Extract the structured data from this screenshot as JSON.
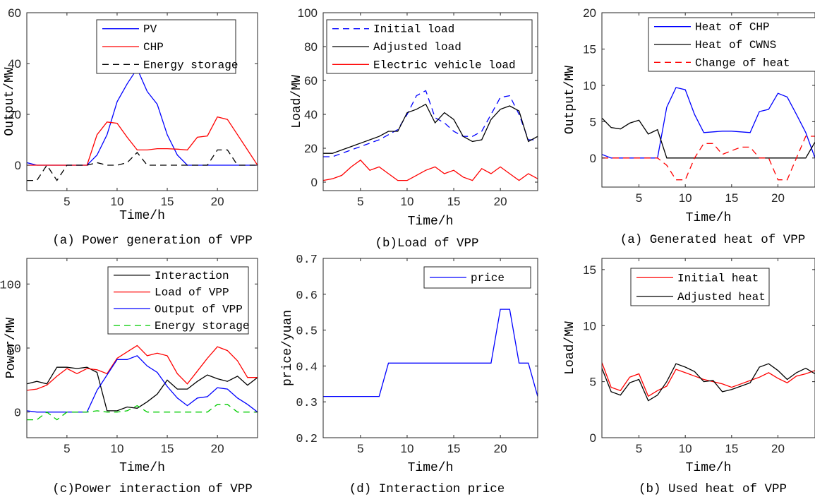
{
  "chart_data": [
    {
      "id": "a1",
      "type": "line",
      "caption": "(a) Power generation of VPP",
      "xlabel": "Time/h",
      "ylabel": "Output/MW",
      "xlim": [
        1,
        24
      ],
      "ylim": [
        -10,
        60
      ],
      "xticks": [
        5,
        10,
        15,
        20
      ],
      "yticks": [
        0,
        20,
        40,
        60
      ],
      "legend": "top-right",
      "series": [
        {
          "name": "PV",
          "color": "#0000ff",
          "dash": "solid",
          "x": [
            1,
            2,
            3,
            4,
            5,
            6,
            7,
            8,
            9,
            10,
            11,
            12,
            13,
            14,
            15,
            16,
            17,
            18,
            19,
            20,
            21,
            22,
            23,
            24
          ],
          "y": [
            1,
            0,
            0,
            0,
            0,
            0,
            0,
            4,
            12,
            25,
            32,
            38,
            29,
            24,
            12,
            4,
            0,
            0,
            0,
            0,
            0,
            0,
            0,
            0
          ]
        },
        {
          "name": "CHP",
          "color": "#ff0000",
          "dash": "solid",
          "x": [
            1,
            2,
            3,
            4,
            5,
            6,
            7,
            8,
            9,
            10,
            11,
            12,
            13,
            14,
            15,
            16,
            17,
            18,
            19,
            20,
            21,
            22,
            23,
            24
          ],
          "y": [
            0,
            0,
            0,
            0,
            0,
            0,
            0,
            12,
            17,
            16.5,
            11,
            6,
            6,
            6.5,
            6.5,
            6.3,
            6,
            11,
            11.5,
            19,
            18,
            12,
            6,
            0
          ]
        },
        {
          "name": "Energy storage",
          "color": "#000000",
          "dash": "dashed",
          "x": [
            1,
            2,
            3,
            4,
            5,
            6,
            7,
            8,
            9,
            10,
            11,
            12,
            13,
            14,
            15,
            16,
            17,
            18,
            19,
            20,
            21,
            22,
            23,
            24
          ],
          "y": [
            -6,
            -6,
            0,
            -6,
            0,
            0,
            0,
            1,
            0,
            0,
            1,
            5,
            0,
            0,
            0,
            0,
            0,
            0,
            0,
            6,
            6,
            0,
            0,
            0
          ]
        }
      ]
    },
    {
      "id": "b1",
      "type": "line",
      "caption": "(b)Load of VPP",
      "xlabel": "Time/h",
      "ylabel": "Load/MW",
      "xlim": [
        1,
        24
      ],
      "ylim": [
        -5,
        100
      ],
      "xticks": [
        5,
        10,
        15,
        20
      ],
      "yticks": [
        0,
        20,
        40,
        60,
        80,
        100
      ],
      "legend": "top",
      "series": [
        {
          "name": "Initial load",
          "color": "#0000ff",
          "dash": "dashed",
          "x": [
            1,
            2,
            3,
            4,
            5,
            6,
            7,
            8,
            9,
            10,
            11,
            12,
            13,
            14,
            15,
            16,
            17,
            18,
            19,
            20,
            21,
            22,
            23,
            24
          ],
          "y": [
            15,
            15,
            17,
            19,
            21,
            23,
            25,
            28,
            31,
            40,
            51,
            54,
            38,
            35,
            30,
            27,
            27,
            30,
            40,
            50,
            51,
            40,
            25,
            25
          ]
        },
        {
          "name": "Adjusted load",
          "color": "#000000",
          "dash": "solid",
          "x": [
            1,
            2,
            3,
            4,
            5,
            6,
            7,
            8,
            9,
            10,
            11,
            12,
            13,
            14,
            15,
            16,
            17,
            18,
            19,
            20,
            21,
            22,
            23,
            24
          ],
          "y": [
            17,
            17,
            19,
            21,
            23,
            25,
            27,
            30,
            30,
            41,
            43,
            46,
            35,
            41,
            37,
            27,
            24,
            25,
            37,
            43,
            45,
            42,
            24,
            27
          ]
        },
        {
          "name": "Electric vehicle load",
          "color": "#ff0000",
          "dash": "solid",
          "x": [
            1,
            2,
            3,
            4,
            5,
            6,
            7,
            8,
            9,
            10,
            11,
            12,
            13,
            14,
            15,
            16,
            17,
            18,
            19,
            20,
            21,
            22,
            23,
            24
          ],
          "y": [
            1,
            2,
            4,
            9,
            13,
            7,
            9,
            5,
            1,
            1,
            4,
            7,
            9,
            5,
            7,
            3,
            1,
            8,
            5,
            9,
            5,
            1,
            5,
            2
          ]
        }
      ]
    },
    {
      "id": "a2",
      "type": "line",
      "caption": "(a) Generated heat of VPP",
      "xlabel": "Time/h",
      "ylabel": "Output/MW",
      "xlim": [
        1,
        24
      ],
      "ylim": [
        -4,
        20
      ],
      "xticks": [
        5,
        10,
        15,
        20
      ],
      "yticks": [
        0,
        5,
        10,
        15,
        20
      ],
      "legend": "top-right",
      "series": [
        {
          "name": "Heat of CHP",
          "color": "#0000ff",
          "dash": "solid",
          "x": [
            1,
            2,
            3,
            4,
            5,
            6,
            7,
            8,
            9,
            10,
            11,
            12,
            13,
            14,
            15,
            16,
            17,
            18,
            19,
            20,
            21,
            22,
            23,
            24
          ],
          "y": [
            0.5,
            0,
            0,
            0,
            0,
            0,
            0,
            7,
            9.7,
            9.4,
            6,
            3.5,
            3.6,
            3.7,
            3.7,
            3.6,
            3.5,
            6.4,
            6.7,
            8.9,
            8.4,
            6,
            3.5,
            0
          ]
        },
        {
          "name": "Heat of CWNS",
          "color": "#000000",
          "dash": "solid",
          "x": [
            1,
            2,
            3,
            4,
            5,
            6,
            7,
            8,
            9,
            10,
            11,
            12,
            13,
            14,
            15,
            16,
            17,
            18,
            19,
            20,
            21,
            22,
            23,
            24
          ],
          "y": [
            5.5,
            4.2,
            4,
            4.8,
            5.2,
            3.3,
            3.9,
            0,
            0,
            0,
            0,
            0,
            0,
            0,
            0,
            0,
            0,
            0,
            0,
            0,
            0,
            0,
            0,
            2.2
          ]
        },
        {
          "name": "Change of heat",
          "color": "#ff0000",
          "dash": "dashed",
          "x": [
            1,
            2,
            3,
            4,
            5,
            6,
            7,
            8,
            9,
            10,
            11,
            12,
            13,
            14,
            15,
            16,
            17,
            18,
            19,
            20,
            21,
            22,
            23,
            24
          ],
          "y": [
            0,
            0,
            0,
            0,
            0,
            0,
            0,
            -1,
            -3,
            -3,
            0,
            2,
            2,
            0.5,
            1,
            1.5,
            1.5,
            0,
            0,
            -3,
            -3,
            0,
            3,
            3
          ]
        }
      ]
    },
    {
      "id": "c1",
      "type": "line",
      "caption": "(c)Power interaction of VPP",
      "xlabel": "Time/h",
      "ylabel": "Power/MW",
      "xlim": [
        1,
        24
      ],
      "ylim": [
        -20,
        120
      ],
      "xticks": [
        5,
        10,
        15,
        20
      ],
      "yticks": [
        0,
        50,
        100
      ],
      "legend": "top-right",
      "series": [
        {
          "name": "Interaction",
          "color": "#000000",
          "dash": "solid",
          "x": [
            1,
            2,
            3,
            4,
            5,
            6,
            7,
            8,
            9,
            10,
            11,
            12,
            13,
            14,
            15,
            16,
            17,
            18,
            19,
            20,
            21,
            22,
            23,
            24
          ],
          "y": [
            22,
            24,
            22,
            35,
            35,
            34,
            35,
            31,
            1,
            1,
            4,
            3,
            8,
            14,
            25,
            18,
            18,
            24,
            29,
            26,
            24,
            28,
            21,
            27
          ]
        },
        {
          "name": "Load of VPP",
          "color": "#ff0000",
          "dash": "solid",
          "x": [
            1,
            2,
            3,
            4,
            5,
            6,
            7,
            8,
            9,
            10,
            11,
            12,
            13,
            14,
            15,
            16,
            17,
            18,
            19,
            20,
            21,
            22,
            23,
            24
          ],
          "y": [
            17,
            18,
            21,
            28,
            34,
            30,
            34,
            33,
            30,
            42,
            47,
            52,
            44,
            46,
            44,
            30,
            22,
            32,
            42,
            51,
            48,
            40,
            27,
            27
          ]
        },
        {
          "name": "Output of VPP",
          "color": "#0000ff",
          "dash": "solid",
          "x": [
            1,
            2,
            3,
            4,
            5,
            6,
            7,
            8,
            9,
            10,
            11,
            12,
            13,
            14,
            15,
            16,
            17,
            18,
            19,
            20,
            21,
            22,
            23,
            24
          ],
          "y": [
            1,
            0,
            0,
            0,
            0,
            0,
            0,
            17,
            29,
            41,
            41,
            44,
            36,
            31,
            20,
            11,
            5,
            11,
            12,
            19,
            18,
            11,
            6,
            0
          ]
        },
        {
          "name": "Energy storage",
          "color": "#00cc00",
          "dash": "dashed",
          "x": [
            1,
            2,
            3,
            4,
            5,
            6,
            7,
            8,
            9,
            10,
            11,
            12,
            13,
            14,
            15,
            16,
            17,
            18,
            19,
            20,
            21,
            22,
            23,
            24
          ],
          "y": [
            -6,
            -6,
            0,
            -6,
            0,
            0,
            0,
            1,
            0,
            0,
            1,
            5,
            0,
            0,
            0,
            0,
            0,
            0,
            0,
            6,
            6,
            0,
            0,
            0
          ]
        }
      ]
    },
    {
      "id": "d1",
      "type": "line",
      "caption": "(d) Interaction price",
      "xlabel": "Time/h",
      "ylabel": "price/yuan",
      "xlim": [
        1,
        24
      ],
      "ylim": [
        0.2,
        0.7
      ],
      "xticks": [
        5,
        10,
        15,
        20
      ],
      "yticks": [
        0.2,
        0.3,
        0.4,
        0.5,
        0.6,
        0.7
      ],
      "legend": "top-right",
      "series": [
        {
          "name": "price",
          "color": "#0000ff",
          "dash": "solid",
          "x": [
            1,
            2,
            3,
            4,
            5,
            6,
            7,
            8,
            9,
            10,
            11,
            12,
            13,
            14,
            15,
            16,
            17,
            18,
            19,
            20,
            21,
            22,
            23,
            24
          ],
          "y": [
            0.315,
            0.315,
            0.315,
            0.315,
            0.315,
            0.315,
            0.315,
            0.408,
            0.408,
            0.408,
            0.408,
            0.408,
            0.408,
            0.408,
            0.408,
            0.408,
            0.408,
            0.408,
            0.408,
            0.558,
            0.558,
            0.408,
            0.408,
            0.315
          ]
        }
      ]
    },
    {
      "id": "b2",
      "type": "line",
      "caption": "(b) Used heat of VPP",
      "xlabel": "Time/h",
      "ylabel": "Load/MW",
      "xlim": [
        1,
        24
      ],
      "ylim": [
        0,
        16
      ],
      "xticks": [
        5,
        10,
        15,
        20
      ],
      "yticks": [
        0,
        5,
        10,
        15
      ],
      "legend": "top-right",
      "series": [
        {
          "name": "Initial heat",
          "color": "#ff0000",
          "dash": "solid",
          "x": [
            1,
            2,
            3,
            4,
            5,
            6,
            7,
            8,
            9,
            10,
            11,
            12,
            13,
            14,
            15,
            16,
            17,
            18,
            19,
            20,
            21,
            22,
            23,
            24
          ],
          "y": [
            6.7,
            4.5,
            4.2,
            5.4,
            5.7,
            3.7,
            4.2,
            4.6,
            6.1,
            5.8,
            5.5,
            5.2,
            5,
            4.8,
            4.5,
            4.8,
            5.1,
            5.4,
            5.8,
            5.3,
            4.9,
            5.5,
            5.7,
            6
          ]
        },
        {
          "name": "Adjusted heat",
          "color": "#000000",
          "dash": "solid",
          "x": [
            1,
            2,
            3,
            4,
            5,
            6,
            7,
            8,
            9,
            10,
            11,
            12,
            13,
            14,
            15,
            16,
            17,
            18,
            19,
            20,
            21,
            22,
            23,
            24
          ],
          "y": [
            6.2,
            4.1,
            3.8,
            4.9,
            5.2,
            3.3,
            3.8,
            5,
            6.6,
            6.3,
            5.9,
            5,
            5.1,
            4.1,
            4.3,
            4.6,
            4.9,
            6.3,
            6.6,
            6,
            5.2,
            5.8,
            6.2,
            5.7
          ]
        }
      ]
    }
  ]
}
